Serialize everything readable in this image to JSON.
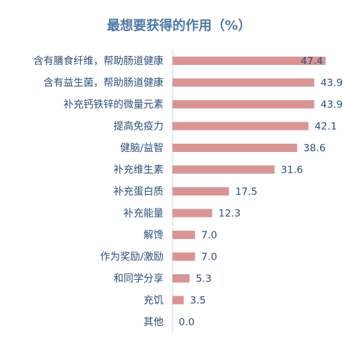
{
  "chart_data": {
    "type": "bar",
    "orientation": "horizontal",
    "title": "最想要获得的作用（%）",
    "categories": [
      "含有膳食纤维，帮助肠道健康",
      "含有益生菌，帮助肠道健康",
      "补充钙铁锌的微量元素",
      "提高免疫力",
      "健脑/益智",
      "补充维生素",
      "补充蛋白质",
      "补充能量",
      "解馋",
      "作为奖励/激励",
      "和同学分享",
      "充饥",
      "其他"
    ],
    "series": [
      {
        "values": [
          47.4,
          43.9,
          43.9,
          42.1,
          38.6,
          31.6,
          17.5,
          12.3,
          7.0,
          7.0,
          5.3,
          3.5,
          0.0
        ]
      }
    ],
    "value_labels": [
      "47.4",
      "43.9",
      "43.9",
      "42.1",
      "38.6",
      "31.6",
      "17.5",
      "12.3",
      "7.0",
      "7.0",
      "5.3",
      "3.5",
      "0.0"
    ],
    "xlim": [
      0,
      47.4
    ],
    "grid": false,
    "legend": "none",
    "bar_color": "#d99594",
    "axis_color": "#c8d3df",
    "text_color": "#2e4f7a",
    "title_color": "#4f79a8"
  }
}
